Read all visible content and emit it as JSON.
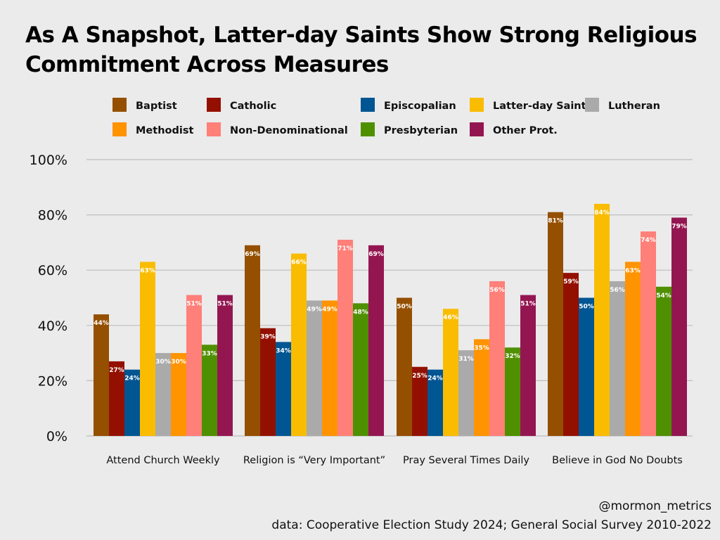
{
  "chart_data": {
    "type": "bar",
    "title": "As A Snapshot, Latter-day Saints Show Strong Religious Commitment Across Measures",
    "title_lines": [
      "As A Snapshot, Latter-day Saints Show Strong Religious",
      "Commitment Across Measures"
    ],
    "categories": [
      "Attend Church Weekly",
      "Religion is “Very Important”",
      "Pray Several Times Daily",
      "Believe in God No Doubts"
    ],
    "ylim": [
      0,
      100
    ],
    "yticks": [
      0,
      20,
      40,
      60,
      80,
      100
    ],
    "ytick_labels": [
      "0%",
      "20%",
      "40%",
      "60%",
      "80%",
      "100%"
    ],
    "grid": true,
    "legend_position": "top",
    "series": [
      {
        "name": "Baptist",
        "color": "#954f00",
        "values": [
          44,
          69,
          50,
          81
        ]
      },
      {
        "name": "Catholic",
        "color": "#931000",
        "values": [
          27,
          39,
          25,
          59
        ]
      },
      {
        "name": "Episcopalian",
        "color": "#005593",
        "values": [
          24,
          34,
          24,
          50
        ]
      },
      {
        "name": "Latter-day Saint",
        "color": "#f9bc00",
        "values": [
          63,
          66,
          46,
          84
        ]
      },
      {
        "name": "Lutheran",
        "color": "#aaaaaa",
        "values": [
          30,
          49,
          31,
          56
        ]
      },
      {
        "name": "Methodist",
        "color": "#ff9300",
        "values": [
          30,
          49,
          35,
          63
        ]
      },
      {
        "name": "Non-Denominational",
        "color": "#ff7f79",
        "values": [
          51,
          71,
          56,
          74
        ]
      },
      {
        "name": "Presbyterian",
        "color": "#4f9000",
        "values": [
          33,
          48,
          32,
          54
        ]
      },
      {
        "name": "Other Prot.",
        "color": "#941651",
        "values": [
          51,
          69,
          51,
          79
        ]
      }
    ]
  },
  "footer": {
    "handle": "@mormon_metrics",
    "source": "data: Cooperative Election Study 2024; General Social Survey 2010-2022"
  }
}
